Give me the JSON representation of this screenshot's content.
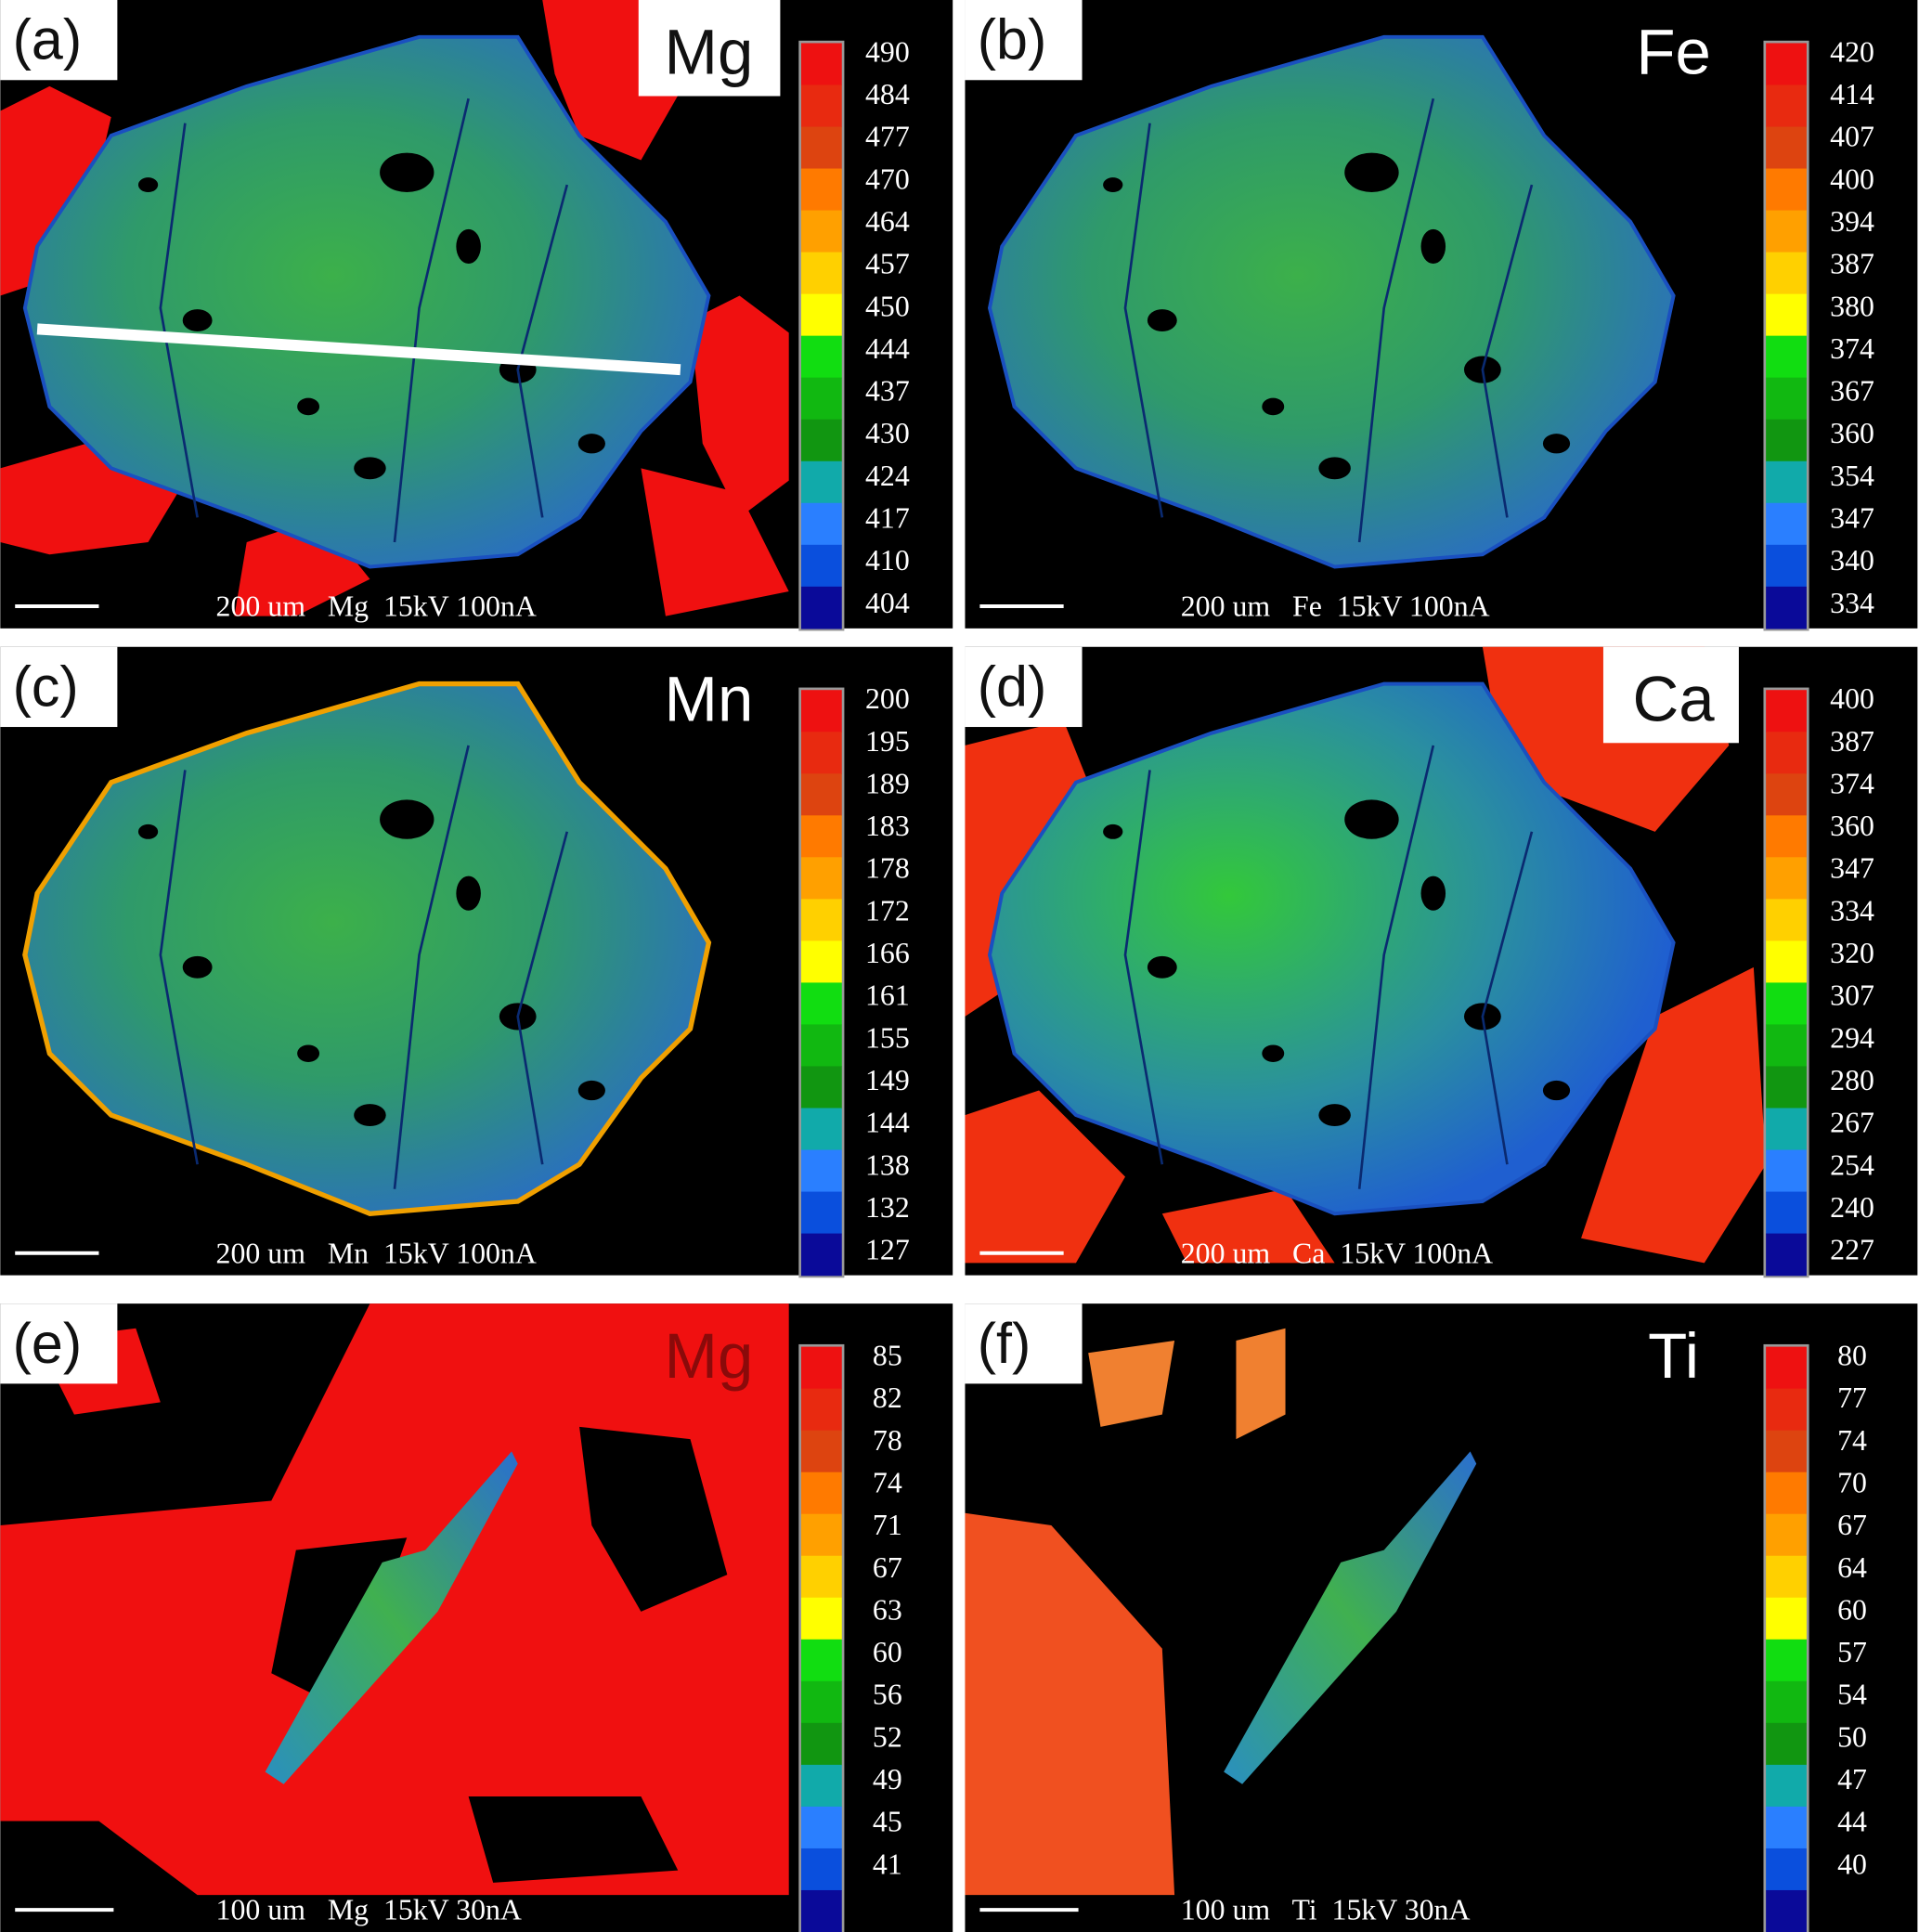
{
  "panels": [
    {
      "label": "(a)",
      "element": "Mg",
      "scale": [
        490,
        484,
        477,
        470,
        464,
        457,
        450,
        444,
        437,
        430,
        424,
        417,
        410,
        404
      ],
      "caption": "200 um   Mg  15kV 100nA"
    },
    {
      "label": "(b)",
      "element": "Fe",
      "scale": [
        420,
        414,
        407,
        400,
        394,
        387,
        380,
        374,
        367,
        360,
        354,
        347,
        340,
        334
      ],
      "caption": "200 um   Fe  15kV 100nA"
    },
    {
      "label": "(c)",
      "element": "Mn",
      "scale": [
        200,
        195,
        189,
        183,
        178,
        172,
        166,
        161,
        155,
        149,
        144,
        138,
        132,
        127
      ],
      "caption": "200 um   Mn  15kV 100nA"
    },
    {
      "label": "(d)",
      "element": "Ca",
      "scale": [
        400,
        387,
        374,
        360,
        347,
        334,
        320,
        307,
        294,
        280,
        267,
        254,
        240,
        227
      ],
      "caption": "200 um   Ca  15kV 100nA"
    },
    {
      "label": "(e)",
      "element": "Mg",
      "scale": [
        85,
        82,
        78,
        74,
        71,
        67,
        63,
        60,
        56,
        52,
        49,
        45,
        41
      ],
      "caption": "100 um   Mg  15kV 30nA"
    },
    {
      "label": "(f)",
      "element": "Ti",
      "scale": [
        80,
        77,
        74,
        70,
        67,
        64,
        60,
        57,
        54,
        50,
        47,
        44,
        40
      ],
      "caption": "100 um   Ti  15kV 30nA"
    }
  ]
}
